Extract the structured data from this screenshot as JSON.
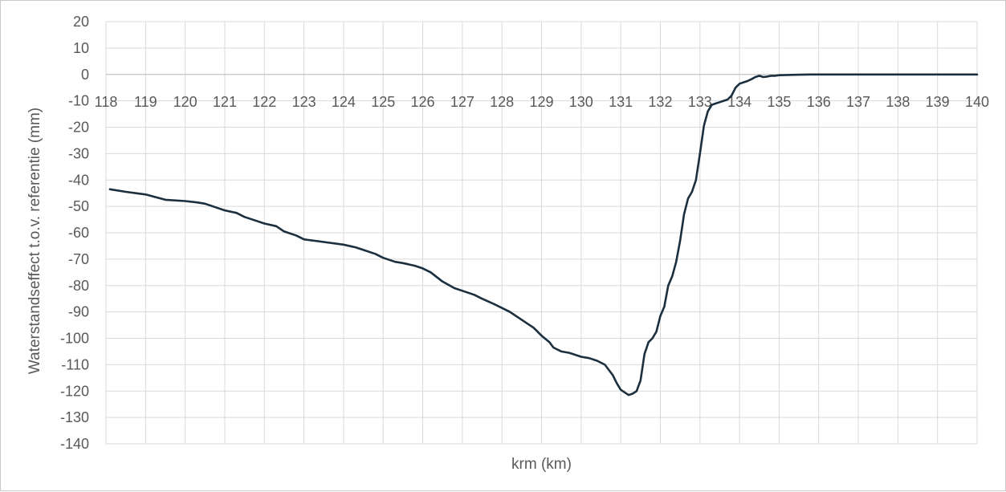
{
  "chart_data": {
    "type": "line",
    "title": "",
    "xlabel": "krm (km)",
    "ylabel": "Waterstandseffect t.o.v. referentie (mm)",
    "xlim": [
      118,
      140
    ],
    "ylim": [
      -140,
      20
    ],
    "x_ticks": [
      "118",
      "119",
      "120",
      "121",
      "122",
      "123",
      "124",
      "125",
      "126",
      "127",
      "128",
      "129",
      "130",
      "131",
      "132",
      "133",
      "134",
      "135",
      "136",
      "137",
      "138",
      "139",
      "140"
    ],
    "y_ticks": [
      "20",
      "10",
      "0",
      "-10",
      "-20",
      "-30",
      "-40",
      "-50",
      "-60",
      "-70",
      "-80",
      "-90",
      "-100",
      "-110",
      "-120",
      "-130",
      "-140"
    ],
    "grid": true,
    "legend": "none",
    "colors": {
      "line": "#1b2f3e",
      "grid": "#d9d9d9",
      "text": "#595959"
    },
    "series": [
      {
        "x": [
          118.1,
          118.5,
          119.0,
          119.5,
          120.0,
          120.3,
          120.5,
          120.8,
          121.0,
          121.3,
          121.5,
          121.8,
          122.0,
          122.3,
          122.5,
          122.8,
          123.0,
          123.5,
          124.0,
          124.3,
          124.5,
          124.8,
          125.0,
          125.3,
          125.5,
          125.8,
          126.0,
          126.2,
          126.5,
          126.8,
          127.0,
          127.3,
          127.5,
          127.8,
          128.0,
          128.2,
          128.4,
          128.6,
          128.8,
          129.0,
          129.2,
          129.3,
          129.5,
          129.7,
          129.8,
          130.0,
          130.2,
          130.4,
          130.6,
          130.8,
          130.9,
          131.0,
          131.1,
          131.2,
          131.3,
          131.4,
          131.5,
          131.6,
          131.7,
          131.8,
          131.9,
          132.0,
          132.1,
          132.2,
          132.3,
          132.4,
          132.5,
          132.6,
          132.7,
          132.8,
          132.9,
          133.0,
          133.1,
          133.2,
          133.3,
          133.4,
          133.5,
          133.6,
          133.7,
          133.8,
          133.9,
          134.0,
          134.1,
          134.2,
          134.3,
          134.4,
          134.5,
          134.6,
          134.7,
          134.8,
          134.9,
          135.0,
          135.2,
          135.5,
          135.8,
          136.0,
          136.5,
          137.0,
          137.5,
          138.0,
          138.5,
          139.0,
          139.5,
          140.0
        ],
        "y": [
          -43.5,
          -44.5,
          -45.5,
          -47.5,
          -48,
          -48.5,
          -49,
          -50.5,
          -51.5,
          -52.5,
          -54,
          -55.5,
          -56.5,
          -57.5,
          -59.5,
          -61,
          -62.5,
          -63.5,
          -64.5,
          -65.5,
          -66.5,
          -68,
          -69.5,
          -71,
          -71.5,
          -72.5,
          -73.5,
          -75,
          -78.5,
          -81,
          -82,
          -83.5,
          -85,
          -87,
          -88.5,
          -90,
          -92,
          -94,
          -96,
          -99,
          -101.5,
          -103.5,
          -105,
          -105.5,
          -106,
          -107,
          -107.5,
          -108.5,
          -110,
          -114,
          -117,
          -119.5,
          -120.5,
          -121.5,
          -121,
          -120,
          -116,
          -106,
          -101.5,
          -100,
          -97.5,
          -91.5,
          -88,
          -80,
          -76.5,
          -71,
          -63,
          -53,
          -47,
          -44.5,
          -40,
          -30,
          -19.5,
          -14,
          -11.5,
          -11,
          -10.5,
          -10,
          -9.5,
          -8,
          -5,
          -3.5,
          -3,
          -2.5,
          -1.8,
          -1,
          -0.5,
          -1,
          -0.8,
          -0.5,
          -0.5,
          -0.3,
          -0.2,
          -0.1,
          0,
          0,
          0,
          0,
          0,
          0,
          0,
          0,
          0,
          0
        ]
      }
    ]
  }
}
